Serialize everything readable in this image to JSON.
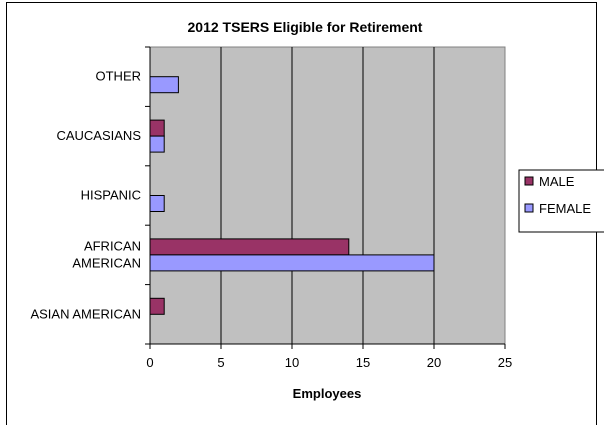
{
  "chart_data": {
    "type": "bar",
    "orientation": "horizontal",
    "title": "2012 TSERS Eligible for Retirement",
    "xlabel": "Employees",
    "ylabel": "",
    "xlim": [
      0,
      25
    ],
    "x_ticks": [
      0,
      5,
      10,
      15,
      20,
      25
    ],
    "categories": [
      "ASIAN AMERICAN",
      "AFRICAN AMERICAN",
      "HISPANIC",
      "CAUCASIANS",
      "OTHER"
    ],
    "category_label_lines": [
      [
        "ASIAN AMERICAN"
      ],
      [
        "AFRICAN",
        "AMERICAN"
      ],
      [
        "HISPANIC"
      ],
      [
        "CAUCASIANS"
      ],
      [
        "OTHER"
      ]
    ],
    "series": [
      {
        "name": "MALE",
        "color": "#993366",
        "values": [
          1,
          14,
          0,
          1,
          0
        ]
      },
      {
        "name": "FEMALE",
        "color": "#9999ff",
        "values": [
          0,
          20,
          1,
          1,
          2
        ]
      }
    ],
    "plot_background": "#c0c0c0",
    "grid": true,
    "legend_position": "right"
  }
}
